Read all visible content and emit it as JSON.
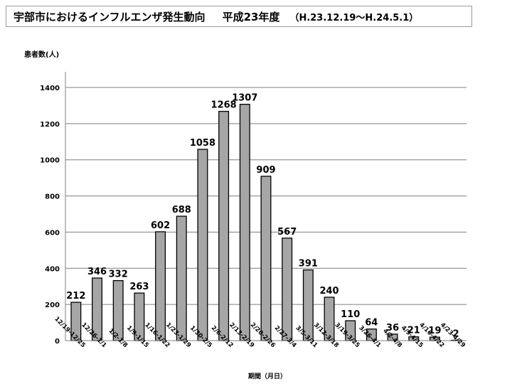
{
  "header": {
    "title": "宇部市におけるインフルエンザ発生動向",
    "subtitle": "平成23年度",
    "period": "（H.23.12.19〜H.24.5.1）"
  },
  "colors": {
    "bar_fill": "#a6a6a6",
    "bar_stroke": "#000000",
    "grid": "#7f7f7f"
  },
  "chart_data": {
    "type": "bar",
    "title": "宇部市におけるインフルエンザ発生動向　平成23年度（H.23.12.19〜H.24.5.1）",
    "ylabel": "患者数(人)",
    "xlabel": "期間（月日）",
    "ylim": [
      0,
      1400
    ],
    "yticks": [
      0,
      200,
      400,
      600,
      800,
      1000,
      1200,
      1400
    ],
    "grid": true,
    "legend": "none",
    "categories": [
      "12/19-12/25",
      "12/26-1/1",
      "1/2-1/8",
      "1/9-1/15",
      "1/16-1/22",
      "1/23-1/29",
      "1/30-2/5",
      "2/6-2/12",
      "2/13-2/19",
      "2/20-2/26",
      "2/27-3/4",
      "3/5-3/11",
      "3/12-3/18",
      "3/19-3/25",
      "3/26-4/1",
      "4/2-4/8",
      "4/9-4/15",
      "4/16-4/22",
      "4/23-4/29"
    ],
    "values": [
      212,
      346,
      332,
      263,
      602,
      688,
      1058,
      1268,
      1307,
      909,
      567,
      391,
      240,
      110,
      64,
      36,
      21,
      19,
      2
    ]
  }
}
